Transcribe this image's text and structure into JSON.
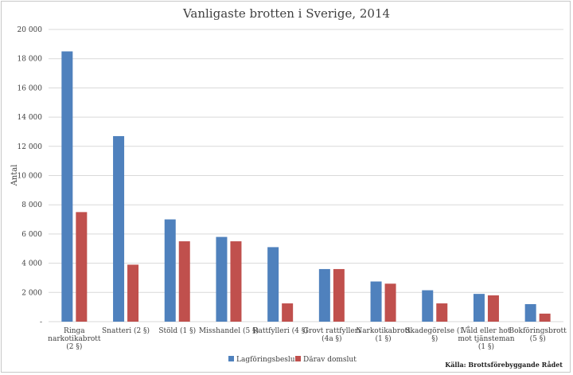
{
  "chart_data": {
    "type": "bar",
    "title": "Vanligaste brotten i Sverige, 2014",
    "ylabel": "Antal",
    "xlabel": "",
    "ylim": [
      0,
      20000
    ],
    "yticks": [
      "-",
      "2 000",
      "4 000",
      "6 000",
      "8 000",
      "10 000",
      "12 000",
      "14 000",
      "16 000",
      "18 000",
      "20 000"
    ],
    "grid": true,
    "legend_position": "bottom",
    "categories": [
      [
        "Ringa",
        "narkotikabrott",
        "(2 §)"
      ],
      [
        "Snatteri (2 §)"
      ],
      [
        "Stöld (1 §)"
      ],
      [
        "Misshandel (5 §)"
      ],
      [
        "Rattfylleri (4 §)"
      ],
      [
        "Grovt rattfylleri",
        "(4a §)"
      ],
      [
        "Narkotikabrott",
        "(1 §)"
      ],
      [
        "Skadegörelse (1",
        "§)"
      ],
      [
        "Våld eller hot",
        "mot tjänsteman",
        "(1 §)"
      ],
      [
        "Bokföringsbrott",
        "(5 §)"
      ]
    ],
    "series": [
      {
        "name": "Lagföringsbeslut",
        "color": "#4f81bd",
        "values": [
          18500,
          12700,
          7000,
          5800,
          5100,
          3600,
          2750,
          2150,
          1900,
          1200
        ]
      },
      {
        "name": "Därav domslut",
        "color": "#c0504d",
        "values": [
          7500,
          3900,
          5500,
          5500,
          1250,
          3600,
          2600,
          1250,
          1800,
          550
        ]
      }
    ],
    "source": "Källa: Brottsförebyggande Rådet"
  }
}
